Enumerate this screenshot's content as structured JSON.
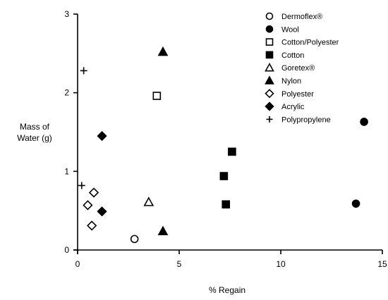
{
  "chart_data": {
    "type": "scatter",
    "title": "",
    "xlabel": "% Regain",
    "ylabel_line1": "Mass of",
    "ylabel_line2": "Water (g)",
    "xlim": [
      0,
      15
    ],
    "ylim": [
      0,
      3
    ],
    "xticks": [
      0,
      5,
      10,
      15
    ],
    "yticks": [
      0,
      1,
      2,
      3
    ],
    "grid": false,
    "legend_position": "top-right",
    "series": [
      {
        "name": "Dermoflex®",
        "marker": "open-circle",
        "points": [
          [
            2.8,
            0.14
          ]
        ]
      },
      {
        "name": "Wool",
        "marker": "filled-circle",
        "points": [
          [
            13.7,
            0.59
          ],
          [
            14.1,
            1.63
          ]
        ]
      },
      {
        "name": "Cotton/Polyester",
        "marker": "open-square",
        "points": [
          [
            3.9,
            1.96
          ]
        ]
      },
      {
        "name": "Cotton",
        "marker": "filled-square",
        "points": [
          [
            7.2,
            0.94
          ],
          [
            7.6,
            1.25
          ],
          [
            7.3,
            0.58
          ]
        ]
      },
      {
        "name": "Goretex®",
        "marker": "open-triangle",
        "points": [
          [
            3.5,
            0.61
          ]
        ]
      },
      {
        "name": "Nylon",
        "marker": "filled-triangle",
        "points": [
          [
            4.2,
            2.52
          ],
          [
            4.2,
            0.24
          ]
        ]
      },
      {
        "name": "Polyester",
        "marker": "open-diamond",
        "points": [
          [
            0.5,
            0.57
          ],
          [
            0.8,
            0.73
          ],
          [
            0.7,
            0.31
          ]
        ]
      },
      {
        "name": "Acrylic",
        "marker": "filled-diamond",
        "points": [
          [
            1.2,
            1.45
          ],
          [
            1.2,
            0.49
          ]
        ]
      },
      {
        "name": "Polypropylene",
        "marker": "plus",
        "points": [
          [
            0.3,
            2.28
          ],
          [
            0.2,
            0.82
          ]
        ]
      }
    ]
  }
}
